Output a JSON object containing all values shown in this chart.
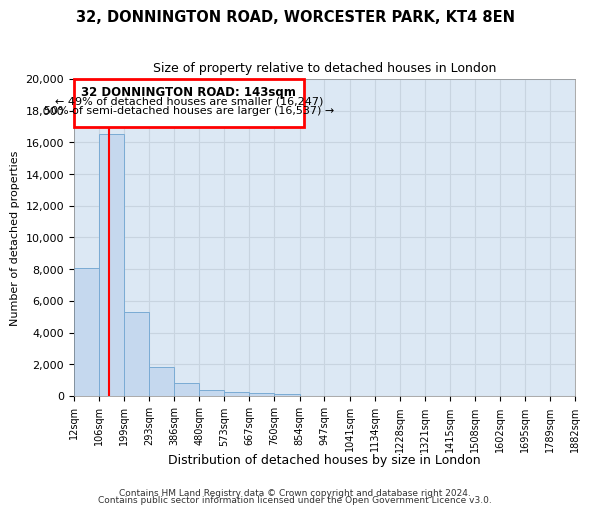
{
  "title1": "32, DONNINGTON ROAD, WORCESTER PARK, KT4 8EN",
  "title2": "Size of property relative to detached houses in London",
  "xlabel": "Distribution of detached houses by size in London",
  "ylabel": "Number of detached properties",
  "bar_edges": [
    12,
    106,
    199,
    293,
    386,
    480,
    573,
    667,
    760,
    854,
    947,
    1041,
    1134,
    1228,
    1321,
    1415,
    1508,
    1602,
    1695,
    1789,
    1882
  ],
  "bar_heights": [
    8100,
    16550,
    5300,
    1800,
    800,
    350,
    250,
    200,
    150,
    0,
    0,
    0,
    0,
    0,
    0,
    0,
    0,
    0,
    0,
    0
  ],
  "bar_color": "#c5d8ee",
  "bar_edgecolor": "#7aabd4",
  "red_line_x": 143,
  "ylim": [
    0,
    20000
  ],
  "yticks": [
    0,
    2000,
    4000,
    6000,
    8000,
    10000,
    12000,
    14000,
    16000,
    18000,
    20000
  ],
  "xtick_labels": [
    "12sqm",
    "106sqm",
    "199sqm",
    "293sqm",
    "386sqm",
    "480sqm",
    "573sqm",
    "667sqm",
    "760sqm",
    "854sqm",
    "947sqm",
    "1041sqm",
    "1134sqm",
    "1228sqm",
    "1321sqm",
    "1415sqm",
    "1508sqm",
    "1602sqm",
    "1695sqm",
    "1789sqm",
    "1882sqm"
  ],
  "annotation_box_text1": "32 DONNINGTON ROAD: 143sqm",
  "annotation_box_text2": "← 49% of detached houses are smaller (16,247)",
  "annotation_box_text3": "50% of semi-detached houses are larger (16,537) →",
  "annotation_box_color": "white",
  "annotation_box_edgecolor": "red",
  "grid_color": "#c8d4e0",
  "background_color": "#dce8f4",
  "footer1": "Contains HM Land Registry data © Crown copyright and database right 2024.",
  "footer2": "Contains public sector information licensed under the Open Government Licence v3.0."
}
